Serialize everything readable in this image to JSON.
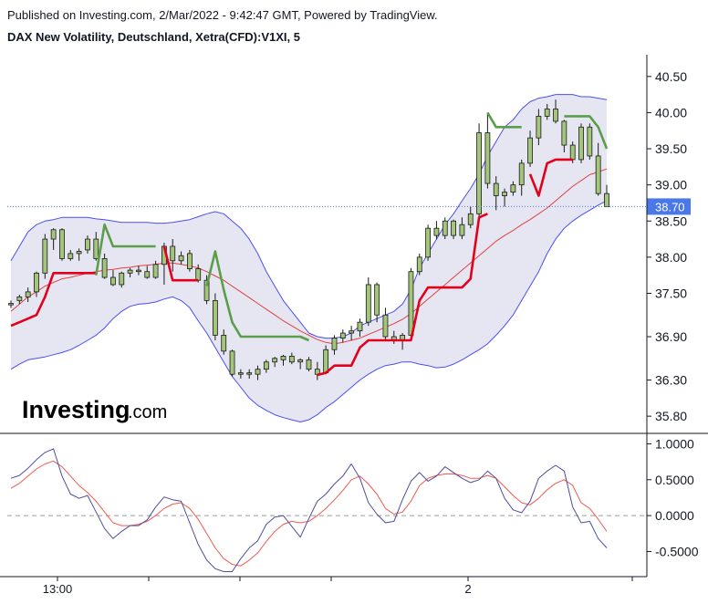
{
  "header": {
    "published": "Published on Investing.com, 2/Mar/2022 - 9:42:47 GMT, Powered by TradingView.",
    "symbol": "DAX New Volatility, Deutschland, Xetra(CFD):V1XI, 5"
  },
  "logo": {
    "main": "Investing",
    "suffix": ".com"
  },
  "colors": {
    "band_fill": "#e6e6f3",
    "band_line": "#4a4ef0",
    "band_mid": "#e0413f",
    "stop_red": "#e3001b",
    "stop_green": "#5a9e4a",
    "candle_body": "#a3c67a",
    "candle_border": "#1a1a1a",
    "last_price_bg": "#4a78e8",
    "osc_blue": "#4d4d9c",
    "osc_red": "#f05a50"
  },
  "chart_data": [
    {
      "type": "candlestick",
      "title": "DAX New Volatility, Deutschland, Xetra(CFD):V1XI, 5",
      "ylim": [
        35.6,
        40.75
      ],
      "y_ticks": [
        "40.50",
        "40.00",
        "39.50",
        "39.00",
        "38.50",
        "38.00",
        "37.50",
        "36.90",
        "36.30",
        "35.80"
      ],
      "x_ticks": [
        "13:00",
        "",
        "",
        "",
        "2",
        ""
      ],
      "last_price": "38.70",
      "candles": [
        [
          37.36,
          37.4,
          37.3,
          37.34
        ],
        [
          37.4,
          37.48,
          37.35,
          37.45
        ],
        [
          37.45,
          37.58,
          37.38,
          37.52
        ],
        [
          37.52,
          37.8,
          37.45,
          37.78
        ],
        [
          37.78,
          38.32,
          37.7,
          38.25
        ],
        [
          38.25,
          38.4,
          38.1,
          38.38
        ],
        [
          38.38,
          38.4,
          37.95,
          37.98
        ],
        [
          37.98,
          38.1,
          37.95,
          38.05
        ],
        [
          38.05,
          38.12,
          37.95,
          38.08
        ],
        [
          38.1,
          38.3,
          38.05,
          38.25
        ],
        [
          38.25,
          38.35,
          37.95,
          37.98
        ],
        [
          37.98,
          38.05,
          37.7,
          37.72
        ],
        [
          37.72,
          37.82,
          37.6,
          37.62
        ],
        [
          37.62,
          37.8,
          37.58,
          37.78
        ],
        [
          37.78,
          37.85,
          37.72,
          37.82
        ],
        [
          37.82,
          37.88,
          37.75,
          37.8
        ],
        [
          37.8,
          37.88,
          37.7,
          37.72
        ],
        [
          37.72,
          37.95,
          37.7,
          37.9
        ],
        [
          37.9,
          38.2,
          37.62,
          38.15
        ],
        [
          38.15,
          38.25,
          37.8,
          37.95
        ],
        [
          37.95,
          38.08,
          37.9,
          38.02
        ],
        [
          38.05,
          38.1,
          37.8,
          37.84
        ],
        [
          37.84,
          37.9,
          37.65,
          37.68
        ],
        [
          37.68,
          37.75,
          37.35,
          37.4
        ],
        [
          37.4,
          37.5,
          36.85,
          36.92
        ],
        [
          36.92,
          37.0,
          36.65,
          36.7
        ],
        [
          36.7,
          36.72,
          36.35,
          36.38
        ],
        [
          36.38,
          36.45,
          36.32,
          36.4
        ],
        [
          36.4,
          36.45,
          36.32,
          36.38
        ],
        [
          36.38,
          36.5,
          36.3,
          36.45
        ],
        [
          36.45,
          36.58,
          36.4,
          36.55
        ],
        [
          36.55,
          36.62,
          36.48,
          36.6
        ],
        [
          36.58,
          36.65,
          36.5,
          36.63
        ],
        [
          36.63,
          36.68,
          36.52,
          36.55
        ],
        [
          36.55,
          36.6,
          36.45,
          36.58
        ],
        [
          36.58,
          36.62,
          36.42,
          36.45
        ],
        [
          36.45,
          36.55,
          36.3,
          36.38
        ],
        [
          36.4,
          36.78,
          36.38,
          36.72
        ],
        [
          36.72,
          36.92,
          36.65,
          36.88
        ],
        [
          36.88,
          37.0,
          36.82,
          36.95
        ],
        [
          36.95,
          37.05,
          36.85,
          36.98
        ],
        [
          36.98,
          37.15,
          36.9,
          37.1
        ],
        [
          37.1,
          37.72,
          37.05,
          37.62
        ],
        [
          37.62,
          37.65,
          37.1,
          37.2
        ],
        [
          37.2,
          37.3,
          36.85,
          36.9
        ],
        [
          36.9,
          36.98,
          36.8,
          36.85
        ],
        [
          36.85,
          36.95,
          36.72,
          36.92
        ],
        [
          36.92,
          37.85,
          36.88,
          37.8
        ],
        [
          37.8,
          38.05,
          37.75,
          38.0
        ],
        [
          38.0,
          38.45,
          37.95,
          38.4
        ],
        [
          38.4,
          38.5,
          38.25,
          38.3
        ],
        [
          38.3,
          38.55,
          38.25,
          38.5
        ],
        [
          38.5,
          38.52,
          38.25,
          38.3
        ],
        [
          38.3,
          38.55,
          38.25,
          38.45
        ],
        [
          38.45,
          38.7,
          38.4,
          38.6
        ],
        [
          38.6,
          39.85,
          38.55,
          39.72
        ],
        [
          39.72,
          40.0,
          38.95,
          39.02
        ],
        [
          39.02,
          39.12,
          38.65,
          38.85
        ],
        [
          38.85,
          38.95,
          38.7,
          38.9
        ],
        [
          38.9,
          39.05,
          38.85,
          39.0
        ],
        [
          39.0,
          39.35,
          38.85,
          39.3
        ],
        [
          39.3,
          39.75,
          39.25,
          39.65
        ],
        [
          39.65,
          40.05,
          39.55,
          39.95
        ],
        [
          39.95,
          40.12,
          39.9,
          40.05
        ],
        [
          40.05,
          40.18,
          39.85,
          39.88
        ],
        [
          39.88,
          39.9,
          39.45,
          39.55
        ],
        [
          39.55,
          39.6,
          39.3,
          39.35
        ],
        [
          39.35,
          39.85,
          39.3,
          39.8
        ],
        [
          39.8,
          39.85,
          39.35,
          39.4
        ],
        [
          39.4,
          39.58,
          38.85,
          38.88
        ],
        [
          38.88,
          39.0,
          38.7,
          38.7
        ]
      ],
      "series": [
        {
          "kind": "band_upper",
          "values": [
            37.95,
            38.15,
            38.35,
            38.45,
            38.5,
            38.52,
            38.55,
            38.55,
            38.55,
            38.55,
            38.53,
            38.52,
            38.5,
            38.48,
            38.48,
            38.48,
            38.48,
            38.47,
            38.47,
            38.48,
            38.5,
            38.52,
            38.56,
            38.6,
            38.63,
            38.6,
            38.5,
            38.4,
            38.25,
            38.05,
            37.8,
            37.6,
            37.4,
            37.25,
            37.1,
            36.95,
            36.9,
            36.88,
            36.88,
            36.9,
            36.95,
            37.05,
            37.1,
            37.15,
            37.2,
            37.25,
            37.35,
            37.55,
            37.85,
            38.05,
            38.25,
            38.45,
            38.6,
            38.78,
            38.95,
            39.15,
            39.4,
            39.6,
            39.8,
            39.9,
            40.05,
            40.15,
            40.2,
            40.22,
            40.25,
            40.25,
            40.25,
            40.22,
            40.22,
            40.2,
            40.18
          ]
        },
        {
          "kind": "band_middle",
          "values": [
            37.25,
            37.35,
            37.45,
            37.52,
            37.6,
            37.65,
            37.7,
            37.72,
            37.75,
            37.78,
            37.8,
            37.82,
            37.83,
            37.85,
            37.86,
            37.88,
            37.89,
            37.9,
            37.92,
            37.92,
            37.9,
            37.88,
            37.85,
            37.8,
            37.74,
            37.68,
            37.6,
            37.52,
            37.44,
            37.36,
            37.28,
            37.2,
            37.12,
            37.05,
            36.98,
            36.92,
            36.86,
            36.82,
            36.8,
            36.82,
            36.85,
            36.88,
            36.93,
            36.98,
            37.03,
            37.08,
            37.14,
            37.22,
            37.32,
            37.42,
            37.52,
            37.62,
            37.72,
            37.82,
            37.92,
            38.02,
            38.12,
            38.22,
            38.3,
            38.37,
            38.45,
            38.52,
            38.6,
            38.68,
            38.78,
            38.88,
            38.98,
            39.06,
            39.14,
            39.18,
            39.22
          ]
        },
        {
          "kind": "band_lower",
          "values": [
            36.45,
            36.52,
            36.58,
            36.6,
            36.62,
            36.65,
            36.68,
            36.72,
            36.78,
            36.85,
            36.92,
            37.02,
            37.15,
            37.25,
            37.32,
            37.35,
            37.36,
            37.38,
            37.42,
            37.45,
            37.4,
            37.3,
            37.12,
            36.95,
            36.75,
            36.55,
            36.35,
            36.2,
            36.05,
            35.95,
            35.88,
            35.82,
            35.78,
            35.75,
            35.72,
            35.75,
            35.82,
            35.92,
            36.0,
            36.1,
            36.2,
            36.3,
            36.38,
            36.45,
            36.5,
            36.52,
            36.55,
            36.55,
            36.52,
            36.5,
            36.47,
            36.48,
            36.52,
            36.58,
            36.65,
            36.72,
            36.8,
            36.92,
            37.05,
            37.2,
            37.4,
            37.6,
            37.8,
            38.05,
            38.25,
            38.4,
            38.5,
            38.58,
            38.65,
            38.72,
            38.78
          ]
        },
        {
          "kind": "stop_red",
          "values": [
            37.05,
            37.1,
            37.15,
            37.2,
            37.45,
            37.78,
            37.78,
            37.78,
            37.78,
            37.78,
            37.78,
            null,
            null,
            null,
            null,
            null,
            null,
            null,
            38.15,
            37.68,
            37.68,
            37.68,
            37.68,
            null,
            null,
            null,
            null,
            null,
            null,
            null,
            null,
            null,
            null,
            null,
            null,
            null,
            36.37,
            36.4,
            36.5,
            36.5,
            36.5,
            36.75,
            36.85,
            36.85,
            36.85,
            36.85,
            36.85,
            36.85,
            37.4,
            37.58,
            37.58,
            37.58,
            37.58,
            37.58,
            37.7,
            38.55,
            38.6,
            null,
            null,
            null,
            null,
            39.15,
            38.85,
            39.3,
            39.35,
            39.35,
            39.35,
            null,
            null,
            null,
            null
          ]
        },
        {
          "kind": "stop_green",
          "values": [
            null,
            null,
            null,
            null,
            null,
            null,
            null,
            null,
            null,
            null,
            37.75,
            38.45,
            38.15,
            38.15,
            38.15,
            38.15,
            38.15,
            38.15,
            null,
            null,
            null,
            null,
            null,
            37.6,
            38.08,
            37.55,
            37.1,
            36.9,
            36.9,
            36.9,
            36.9,
            36.9,
            36.9,
            36.9,
            36.9,
            36.85,
            null,
            null,
            null,
            null,
            null,
            null,
            null,
            null,
            null,
            null,
            null,
            null,
            null,
            null,
            null,
            null,
            null,
            null,
            null,
            null,
            40.0,
            39.8,
            39.8,
            39.8,
            39.8,
            null,
            null,
            null,
            null,
            39.95,
            39.95,
            39.95,
            39.95,
            39.8,
            39.5
          ]
        }
      ]
    },
    {
      "type": "line",
      "ylim": [
        -0.85,
        1.12
      ],
      "y_ticks": [
        "1.0000",
        "0.5000",
        "0.0000",
        "-0.5000"
      ],
      "zero_line": "dashed",
      "series": [
        {
          "kind": "fast",
          "values": [
            0.52,
            0.56,
            0.66,
            0.78,
            0.88,
            0.93,
            0.55,
            0.3,
            0.24,
            0.28,
            0.05,
            -0.18,
            -0.32,
            -0.22,
            -0.14,
            -0.14,
            -0.06,
            0.12,
            0.26,
            0.22,
            0.2,
            -0.1,
            -0.4,
            -0.62,
            -0.74,
            -0.78,
            -0.78,
            -0.6,
            -0.45,
            -0.35,
            -0.12,
            -0.02,
            0.0,
            -0.15,
            -0.3,
            -0.04,
            0.2,
            0.3,
            0.44,
            0.55,
            0.72,
            0.52,
            0.18,
            0.02,
            -0.1,
            -0.08,
            0.22,
            0.48,
            0.6,
            0.48,
            0.55,
            0.68,
            0.6,
            0.52,
            0.46,
            0.5,
            0.62,
            0.52,
            0.24,
            0.08,
            0.04,
            0.2,
            0.52,
            0.62,
            0.7,
            0.62,
            0.12,
            -0.1,
            -0.08,
            -0.32,
            -0.45
          ]
        },
        {
          "kind": "slow",
          "values": [
            0.38,
            0.45,
            0.55,
            0.65,
            0.72,
            0.76,
            0.68,
            0.55,
            0.42,
            0.32,
            0.2,
            0.05,
            -0.1,
            -0.14,
            -0.14,
            -0.12,
            -0.08,
            0.0,
            0.1,
            0.16,
            0.18,
            0.1,
            -0.05,
            -0.25,
            -0.45,
            -0.6,
            -0.68,
            -0.7,
            -0.62,
            -0.52,
            -0.36,
            -0.22,
            -0.12,
            -0.08,
            -0.1,
            -0.08,
            0.0,
            0.1,
            0.22,
            0.35,
            0.5,
            0.55,
            0.44,
            0.3,
            0.1,
            0.02,
            0.05,
            0.2,
            0.42,
            0.52,
            0.56,
            0.58,
            0.58,
            0.56,
            0.52,
            0.52,
            0.56,
            0.52,
            0.4,
            0.28,
            0.18,
            0.15,
            0.24,
            0.36,
            0.45,
            0.5,
            0.42,
            0.18,
            0.1,
            -0.05,
            -0.22
          ]
        }
      ]
    }
  ]
}
